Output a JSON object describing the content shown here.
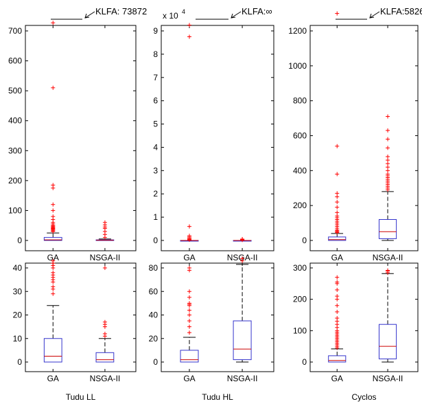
{
  "colors": {
    "box": "#3333cc",
    "median": "#cc0000",
    "outlier": "#ff0000",
    "whisker": "#000000",
    "axis": "#000000",
    "annotation_line": "#000000"
  },
  "chart_data": [
    {
      "type": "boxplot",
      "categories": [
        "GA",
        "NSGA-II"
      ],
      "ylim": [
        -25,
        760
      ],
      "yticks": [
        0,
        100,
        200,
        300,
        400,
        500,
        600,
        700
      ],
      "ytick_labels": [
        "0",
        "100",
        "200",
        "300",
        "400",
        "500",
        "600",
        "700"
      ],
      "exponent_label": "",
      "annotation": "KLFA: 73872",
      "xlabel": "",
      "boxes": [
        {
          "q1": 0,
          "median": 2,
          "q3": 10,
          "whisker_low": 0,
          "whisker_high": 25,
          "outliers": [
            30,
            32,
            35,
            38,
            40,
            42,
            45,
            48,
            50,
            55,
            60,
            70,
            80,
            100,
            120,
            175,
            185,
            510,
            727
          ]
        },
        {
          "q1": 0,
          "median": 1,
          "q3": 2,
          "whisker_low": 0,
          "whisker_high": 5,
          "outliers": [
            10,
            20,
            30,
            40,
            45,
            52,
            60
          ]
        }
      ]
    },
    {
      "type": "boxplot",
      "categories": [
        "GA",
        "NSGA-II"
      ],
      "ylim": [
        -0.25,
        9.8
      ],
      "yticks": [
        0,
        1,
        2,
        3,
        4,
        5,
        6,
        7,
        8,
        9
      ],
      "ytick_labels": [
        "0",
        "1",
        "2",
        "3",
        "4",
        "5",
        "6",
        "7",
        "8",
        "9"
      ],
      "exponent_label": "x 10",
      "exponent_sup": "4",
      "annotation": "KLFA:∞",
      "xlabel": "",
      "boxes": [
        {
          "q1": 0,
          "median": 0,
          "q3": 0,
          "whisker_low": 0,
          "whisker_high": 0,
          "outliers": [
            0.03,
            0.06,
            0.1,
            0.15,
            0.2,
            0.6,
            8.75,
            9.25
          ]
        },
        {
          "q1": 0,
          "median": 0,
          "q3": 0,
          "whisker_low": 0,
          "whisker_high": 0,
          "outliers": [
            0.02,
            0.04,
            0.06
          ]
        }
      ]
    },
    {
      "type": "boxplot",
      "categories": [
        "GA",
        "NSGA-II"
      ],
      "ylim": [
        -25,
        1350
      ],
      "yticks": [
        0,
        200,
        400,
        600,
        800,
        1000,
        1200
      ],
      "ytick_labels": [
        "0",
        "200",
        "400",
        "600",
        "800",
        "1000",
        "1200"
      ],
      "exponent_label": "",
      "annotation": "KLFA:5826",
      "xlabel": "",
      "boxes": [
        {
          "q1": 0,
          "median": 5,
          "q3": 20,
          "whisker_low": 0,
          "whisker_high": 40,
          "outliers": [
            45,
            50,
            55,
            60,
            70,
            80,
            90,
            100,
            110,
            120,
            130,
            140,
            160,
            190,
            220,
            250,
            270,
            380,
            540,
            1300
          ]
        },
        {
          "q1": 10,
          "median": 50,
          "q3": 120,
          "whisker_low": 0,
          "whisker_high": 280,
          "outliers": [
            290,
            300,
            310,
            320,
            330,
            340,
            350,
            360,
            370,
            380,
            400,
            420,
            440,
            460,
            480,
            530,
            580,
            630,
            710
          ]
        }
      ]
    },
    {
      "type": "boxplot",
      "categories": [
        "GA",
        "NSGA-II"
      ],
      "ylim": [
        -3,
        45
      ],
      "yticks": [
        0,
        10,
        20,
        30,
        40
      ],
      "ytick_labels": [
        "0",
        "10",
        "20",
        "30",
        "40"
      ],
      "exponent_label": "",
      "annotation": "",
      "xlabel": "Tudu LL",
      "boxes": [
        {
          "q1": 0,
          "median": 2.5,
          "q3": 10,
          "whisker_low": 0,
          "whisker_high": 24,
          "outliers": [
            29,
            31,
            32,
            34,
            35,
            36,
            37,
            38,
            40,
            41,
            42,
            43
          ]
        },
        {
          "q1": 0,
          "median": 1,
          "q3": 4,
          "whisker_low": 0,
          "whisker_high": 10,
          "outliers": [
            11,
            12,
            15,
            16,
            17,
            40
          ]
        }
      ]
    },
    {
      "type": "boxplot",
      "categories": [
        "GA",
        "NSGA-II"
      ],
      "ylim": [
        -7,
        89
      ],
      "yticks": [
        0,
        20,
        40,
        60,
        80
      ],
      "ytick_labels": [
        "0",
        "20",
        "40",
        "60",
        "80"
      ],
      "exponent_label": "",
      "annotation": "",
      "xlabel": "Tudu HL",
      "boxes": [
        {
          "q1": 0,
          "median": 2,
          "q3": 10,
          "whisker_low": 0,
          "whisker_high": 21,
          "outliers": [
            25,
            30,
            35,
            40,
            44,
            48,
            49,
            50,
            55,
            60,
            78,
            80
          ]
        },
        {
          "q1": 2,
          "median": 11,
          "q3": 35,
          "whisker_low": 0,
          "whisker_high": 83,
          "outliers": [
            86,
            88
          ]
        }
      ]
    },
    {
      "type": "boxplot",
      "categories": [
        "GA",
        "NSGA-II"
      ],
      "ylim": [
        -15,
        300
      ],
      "yticks": [
        0,
        100,
        200,
        300
      ],
      "ytick_labels": [
        "0",
        "100",
        "200",
        "300"
      ],
      "exponent_label": "",
      "annotation": "",
      "xlabel": "Cyclos",
      "boxes": [
        {
          "q1": 0,
          "median": 5,
          "q3": 20,
          "whisker_low": 0,
          "whisker_high": 42,
          "outliers": [
            45,
            50,
            55,
            60,
            65,
            70,
            75,
            80,
            85,
            90,
            95,
            100,
            110,
            120,
            130,
            140,
            160,
            180,
            200,
            210,
            230,
            250,
            255,
            270
          ]
        },
        {
          "q1": 10,
          "median": 50,
          "q3": 120,
          "whisker_low": 0,
          "whisker_high": 282,
          "outliers": [
            285,
            290,
            292
          ]
        }
      ]
    }
  ]
}
